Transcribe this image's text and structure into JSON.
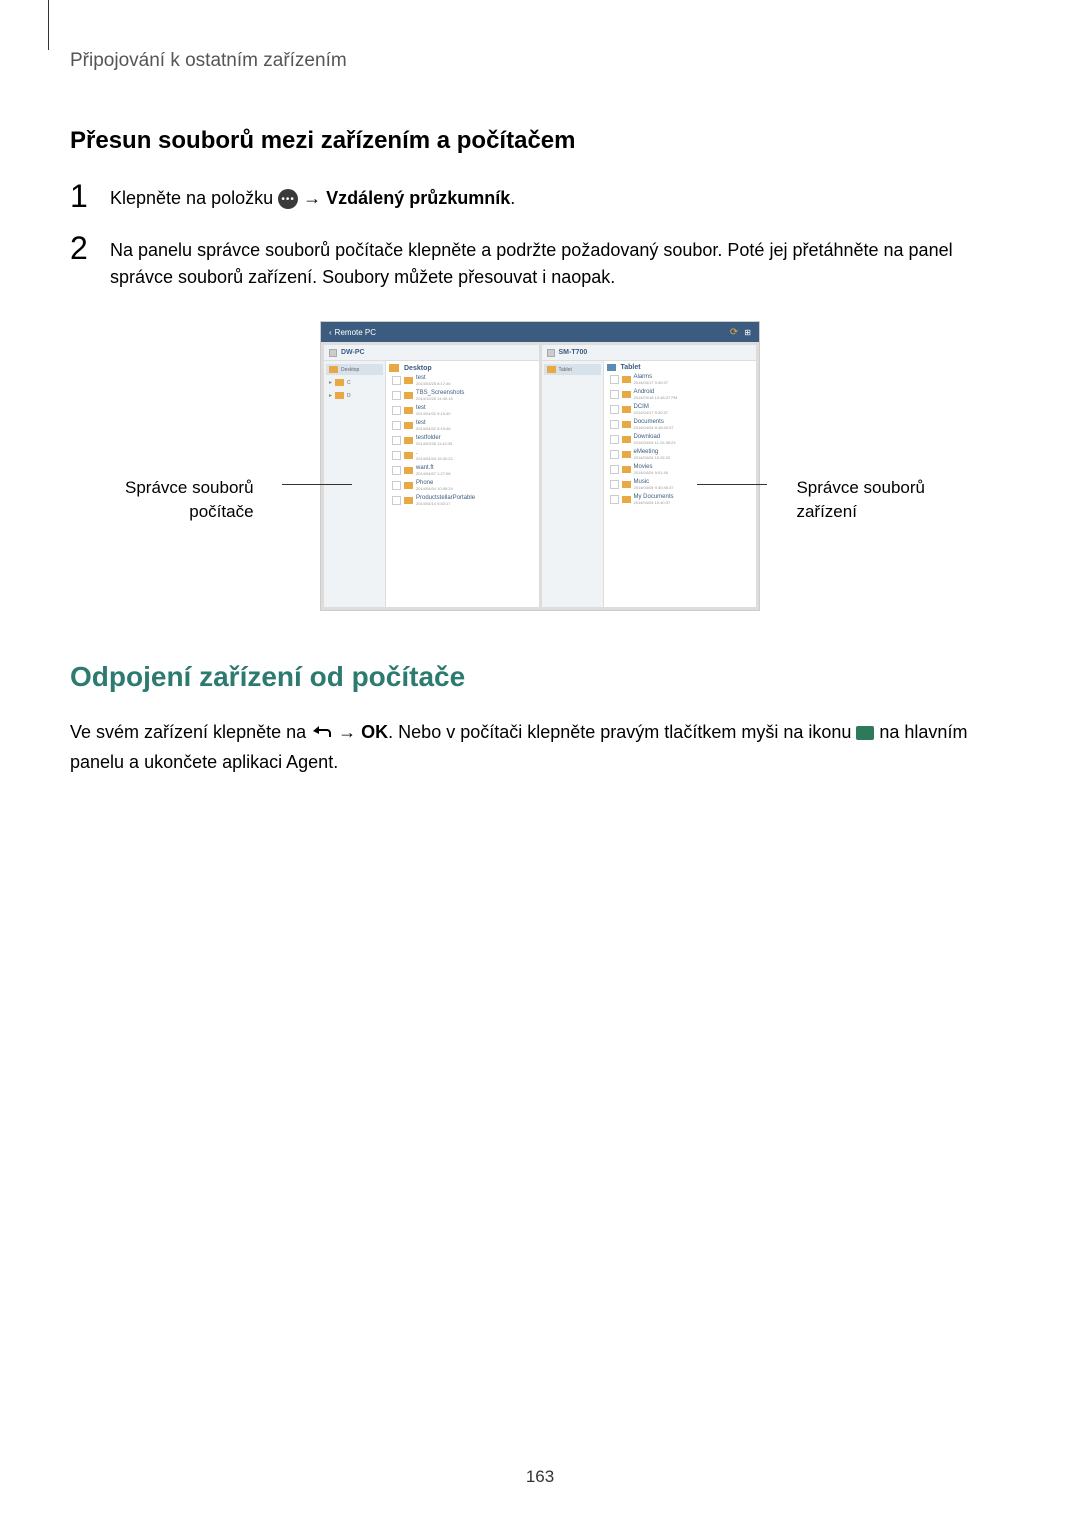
{
  "breadcrumb": "Připojování k ostatním zařízením",
  "section_title": "Přesun souborů mezi zařízením a počítačem",
  "step1": {
    "number": "1",
    "text_prefix": "Klepněte na položku ",
    "arrow": " → ",
    "bold_text": "Vzdálený průzkumník",
    "suffix": "."
  },
  "step2": {
    "number": "2",
    "text": "Na panelu správce souborů počítače klepněte a podržte požadovaný soubor. Poté jej přetáhněte na panel správce souborů zařízení. Soubory můžete přesouvat i naopak."
  },
  "screenshot": {
    "header": "Remote PC",
    "label_left_line1": "Správce souborů",
    "label_left_line2": "počítače",
    "label_right_line1": "Správce souborů",
    "label_right_line2": "zařízení",
    "left_panel": {
      "header": "DW-PC",
      "list_title": "Desktop",
      "items": [
        {
          "name": "test",
          "sub": "2014/03/25 8:17:46"
        },
        {
          "name": "TBS_Screenshots",
          "sub": "2014/12/26 14:40:15"
        },
        {
          "name": "test",
          "sub": "2014/04/02 9:15:40"
        },
        {
          "name": "test",
          "sub": "2014/04/02 9:19:46"
        },
        {
          "name": "testfolder",
          "sub": "2014/03/28 11:42:35"
        },
        {
          "name": ".",
          "sub": "2014/04/04 15:32:22"
        },
        {
          "name": "want.ft",
          "sub": "2014/04/07 1:27:06"
        },
        {
          "name": "Phone",
          "sub": "2014/04/04 10:59:24"
        },
        {
          "name": "ProductstellarPortable",
          "sub": "2014/04/10 5:53:17"
        }
      ]
    },
    "right_panel": {
      "header": "SM-T700",
      "list_title": "Tablet",
      "items": [
        {
          "name": "Alarms",
          "sub": "2014/04/17 9:30:37"
        },
        {
          "name": "Android",
          "sub": "2014/03/18 10:48:37 PM"
        },
        {
          "name": "DCIM",
          "sub": "2014/04/17 9:30:37"
        },
        {
          "name": "Documents",
          "sub": "2014/04/04 8:16:40:37"
        },
        {
          "name": "Download",
          "sub": "2014/04/04 11:10:38:23"
        },
        {
          "name": "eMeeting",
          "sub": "2014/04/04 10:32:22"
        },
        {
          "name": "Movies",
          "sub": "2014/04/04 9:01:46"
        },
        {
          "name": "Music",
          "sub": "2014/04/04 9:30:46:37"
        },
        {
          "name": "My Documents",
          "sub": "2014/04/04 10:40:37"
        }
      ]
    }
  },
  "subsection_title": "Odpojení zařízení od počítače",
  "paragraph": {
    "text1": "Ve svém zařízení klepněte na ",
    "arrow": " → ",
    "ok": "OK",
    "text2": ". Nebo v počítači klepněte pravým tlačítkem myši na ikonu ",
    "text3": " na hlavním panelu a ukončete aplikaci Agent."
  },
  "page_number": "163",
  "colors": {
    "teal": "#2d7a70",
    "header_blue": "#3b5c7f",
    "folder_orange": "#e8a843"
  }
}
